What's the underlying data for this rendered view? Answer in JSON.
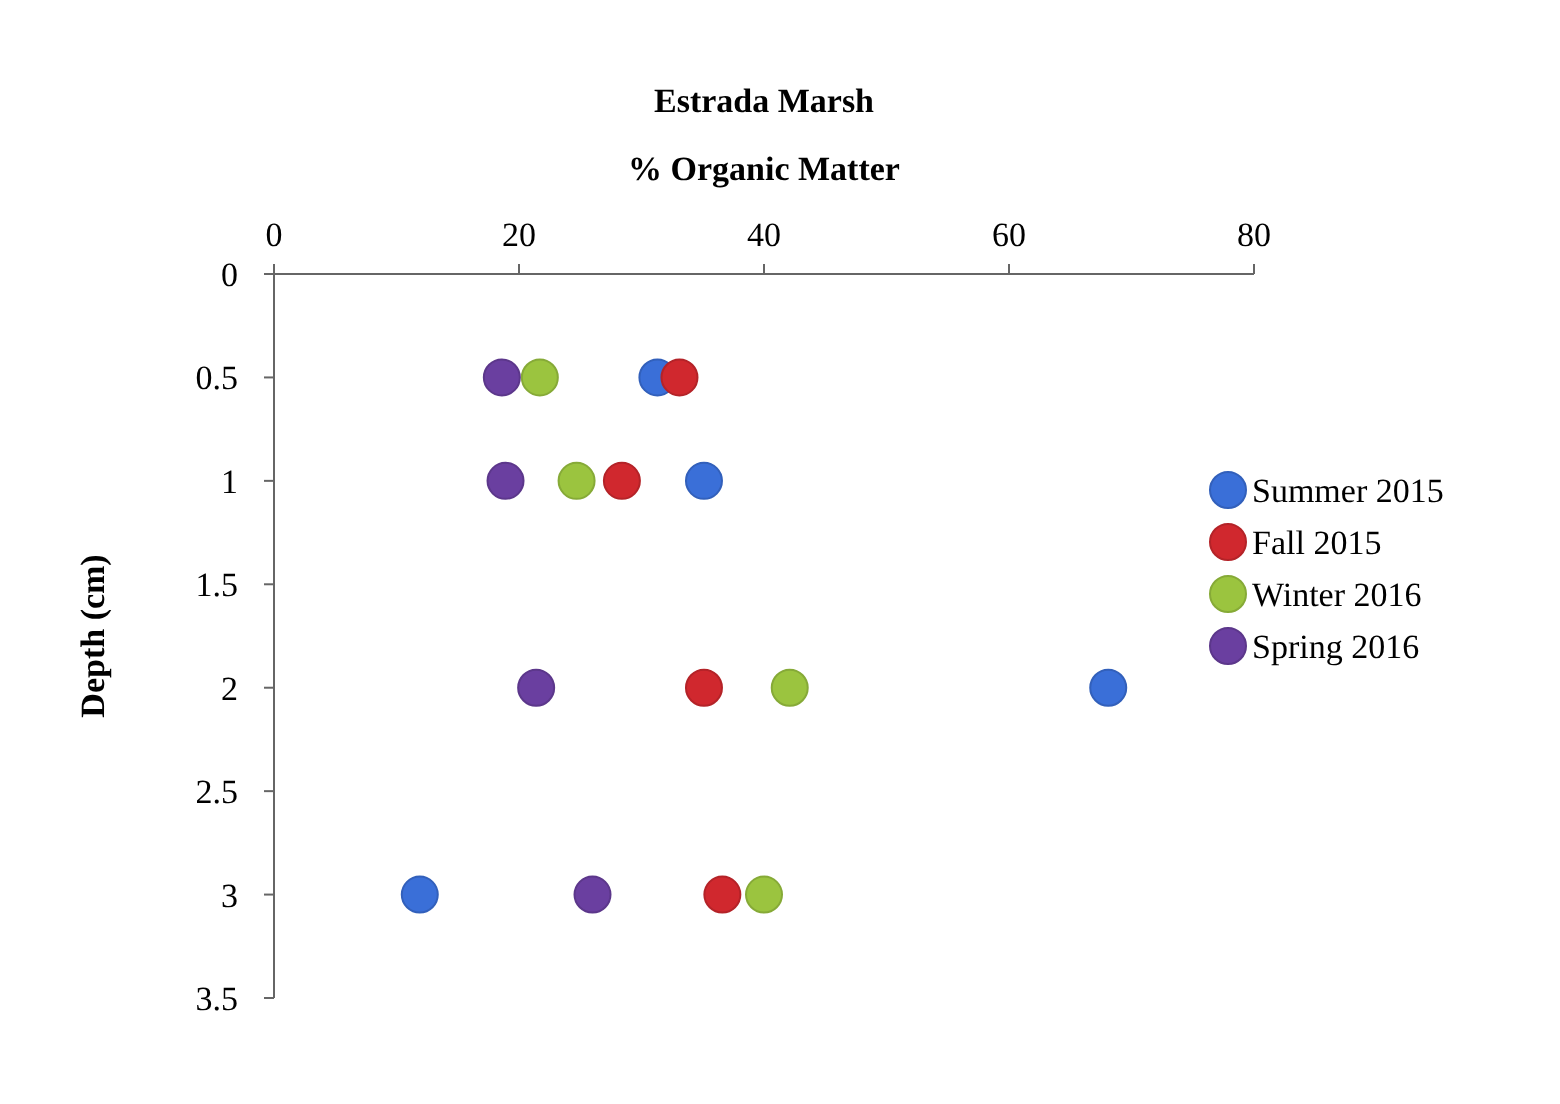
{
  "chart_data": {
    "type": "scatter",
    "title": "Estrada Marsh",
    "xlabel": "% Organic Matter",
    "ylabel": "Depth (cm)",
    "xlim": [
      0,
      80
    ],
    "xticks": [
      0,
      20,
      40,
      60,
      80
    ],
    "ylim": [
      3.5,
      0
    ],
    "yticks": [
      0,
      0.5,
      1,
      1.5,
      2,
      2.5,
      3,
      3.5
    ],
    "marker": "circle",
    "grid": false,
    "legend": "right",
    "series": [
      {
        "name": "Summer 2015",
        "color": "#3a6fd8",
        "x": [
          31.3,
          35.1,
          68.1,
          11.9
        ],
        "values": [
          0.5,
          1,
          2,
          3
        ]
      },
      {
        "name": "Fall 2015",
        "color": "#d0282e",
        "x": [
          33.1,
          28.4,
          35.1,
          36.6
        ],
        "values": [
          0.5,
          1,
          2,
          3
        ]
      },
      {
        "name": "Winter 2016",
        "color": "#9bc43f",
        "x": [
          21.7,
          24.7,
          42.1,
          40.0
        ],
        "values": [
          0.5,
          1,
          2,
          3
        ]
      },
      {
        "name": "Spring 2016",
        "color": "#6a3fa0",
        "x": [
          18.6,
          18.9,
          21.4,
          26.0
        ],
        "values": [
          0.5,
          1,
          2,
          3
        ]
      }
    ]
  }
}
